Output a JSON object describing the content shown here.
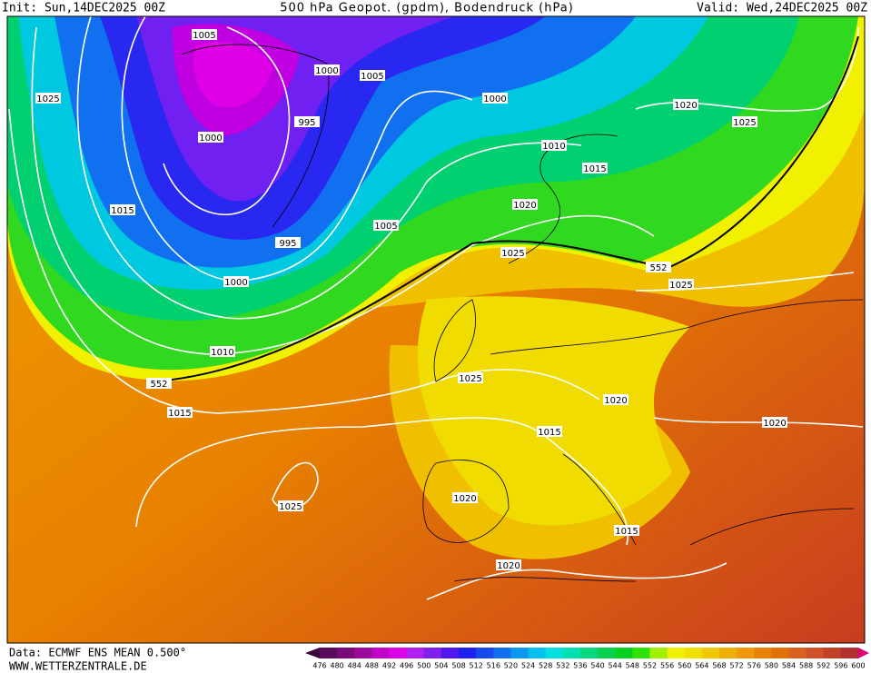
{
  "header": {
    "init": "Init: Sun,14DEC2025 00Z",
    "title": "500 hPa Geopot. (gpdm), Bodendruck (hPa)",
    "valid": "Valid: Wed,24DEC2025 00Z"
  },
  "map": {
    "isobar_labels": [
      "1005",
      "1000",
      "1005",
      "1000",
      "1025",
      "1020",
      "1025",
      "1000",
      "995",
      "1010",
      "1015",
      "1015",
      "1020",
      "1005",
      "995",
      "1025",
      "552",
      "1025",
      "1000",
      "1010",
      "1025",
      "552",
      "1020",
      "1015",
      "1020",
      "1015",
      "1020",
      "1025",
      "1015",
      "1020"
    ]
  },
  "scale": {
    "labels": [
      476,
      480,
      484,
      488,
      492,
      496,
      500,
      504,
      508,
      512,
      516,
      520,
      524,
      528,
      532,
      536,
      540,
      544,
      548,
      552,
      556,
      560,
      564,
      568,
      572,
      576,
      580,
      584,
      588,
      592,
      596,
      600
    ],
    "colors": [
      "#5a0a5a",
      "#7a0a7a",
      "#9a089a",
      "#c000c8",
      "#e000e8",
      "#b020f0",
      "#8020f0",
      "#5018f0",
      "#2020f0",
      "#1848f0",
      "#1070f0",
      "#0898f0",
      "#00c0f0",
      "#00e0e0",
      "#00e0b0",
      "#00d880",
      "#00d050",
      "#00d020",
      "#30e000",
      "#a0f000",
      "#f0f000",
      "#f0e000",
      "#f0c800",
      "#f0b000",
      "#f09800",
      "#e88000",
      "#e07000",
      "#d86020",
      "#d05028",
      "#c04028",
      "#b03030"
    ]
  },
  "footer": {
    "source": "Data: ECMWF ENS MEAN 0.500°",
    "site": "WWW.WETTERZENTRALE.DE"
  }
}
